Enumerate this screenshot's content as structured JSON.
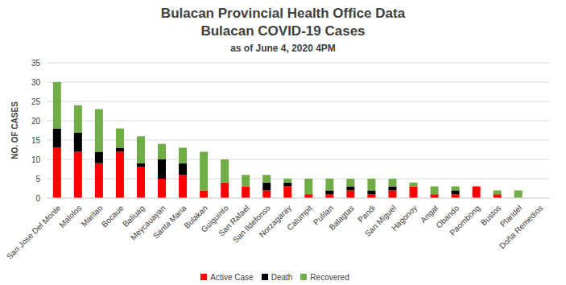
{
  "chart_data": {
    "type": "bar",
    "title": [
      "Bulacan Provincial Health Office Data",
      "Bulacan COVID-19 Cases"
    ],
    "subtitle": "as of June 4, 2020 4PM",
    "y_label": "NO. OF CASES",
    "categories": [
      "San Jose Del Monte",
      "Malolos",
      "Marilao",
      "Bocaue",
      "Baliuag",
      "Meycauayan",
      "Santa Maria",
      "Bulakan",
      "Guiguinto",
      "San Rafael",
      "San Ildefonso",
      "Norzagaray",
      "Calumpit",
      "Pulilan",
      "Balagtas",
      "Pandi",
      "San Miguel",
      "Hagonoy",
      "Angat",
      "Obando",
      "Paombong",
      "Bustos",
      "Plaridel",
      "Doña Remedios"
    ],
    "series": [
      {
        "name": "Active Case",
        "color": "#ff0000",
        "values": [
          13,
          12,
          9,
          12,
          8,
          5,
          6,
          2,
          4,
          3,
          2,
          3,
          1,
          1,
          2,
          1,
          2,
          3,
          1,
          1,
          3,
          1,
          0,
          0
        ]
      },
      {
        "name": "Death",
        "color": "#000000",
        "values": [
          5,
          5,
          3,
          1,
          1,
          5,
          3,
          0,
          0,
          0,
          2,
          1,
          0,
          1,
          1,
          1,
          1,
          0,
          0,
          1,
          0,
          0,
          0,
          0
        ]
      },
      {
        "name": "Recovered",
        "color": "#70ad47",
        "values": [
          12,
          7,
          11,
          5,
          7,
          4,
          4,
          10,
          6,
          3,
          2,
          1,
          4,
          3,
          2,
          3,
          2,
          1,
          2,
          1,
          0,
          1,
          2,
          0
        ]
      }
    ],
    "ylim": [
      0,
      35
    ],
    "yticks": [
      0,
      5,
      10,
      15,
      20,
      25,
      30,
      35
    ],
    "stacked": true,
    "grid": true,
    "legend": "bottom"
  }
}
